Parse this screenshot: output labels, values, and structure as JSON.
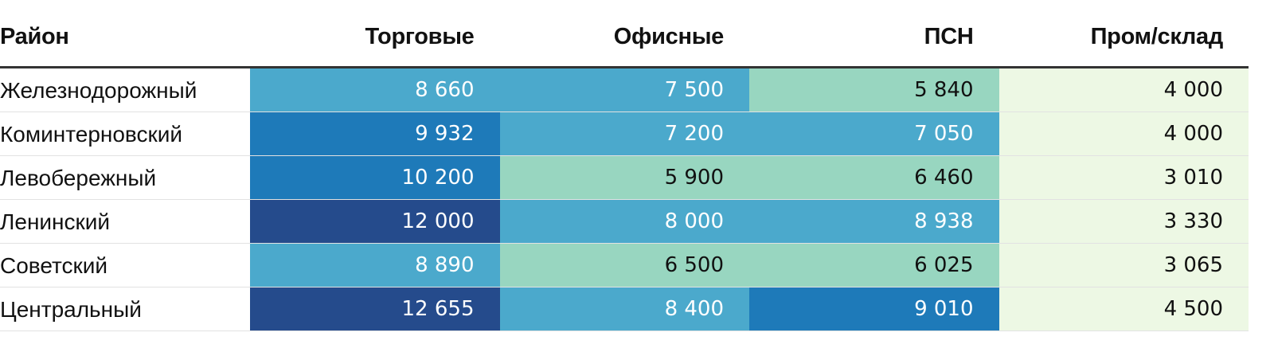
{
  "chart_data": {
    "type": "table",
    "columns": [
      "Район",
      "Торговые",
      "Офисные",
      "ПСН",
      "Пром/склад"
    ],
    "rows": [
      {
        "district": "Железнодорожный",
        "values": [
          8660,
          7500,
          5840,
          4000
        ],
        "labels": [
          "8 660",
          "7 500",
          "5 840",
          "4 000"
        ]
      },
      {
        "district": "Коминтерновский",
        "values": [
          9932,
          7200,
          7050,
          4000
        ],
        "labels": [
          "9 932",
          "7 200",
          "7 050",
          "4 000"
        ]
      },
      {
        "district": "Левобережный",
        "values": [
          10200,
          5900,
          6460,
          3010
        ],
        "labels": [
          "10 200",
          "5 900",
          "6 460",
          "3 010"
        ]
      },
      {
        "district": "Ленинский",
        "values": [
          12000,
          8000,
          8938,
          3330
        ],
        "labels": [
          "12 000",
          "8 000",
          "8 938",
          "3 330"
        ]
      },
      {
        "district": "Советский",
        "values": [
          8890,
          6500,
          6025,
          3065
        ],
        "labels": [
          "8 890",
          "6 500",
          "6 025",
          "3 065"
        ]
      },
      {
        "district": "Центральный",
        "values": [
          12655,
          8400,
          9010,
          4500
        ],
        "labels": [
          "12 655",
          "8 400",
          "9 010",
          "4 500"
        ]
      }
    ],
    "color_scale": {
      "thresholds": [
        5000,
        7000,
        9000,
        12000
      ],
      "colors": [
        "#edf8e4",
        "#98d6c0",
        "#4ba9cc",
        "#1e7ab9",
        "#254b8c"
      ],
      "text_dark": "#111111",
      "text_light": "#ffffff"
    }
  }
}
